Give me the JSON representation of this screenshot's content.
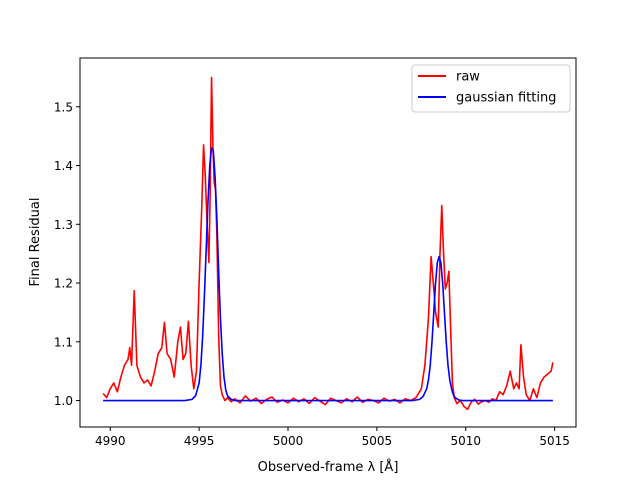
{
  "chart_data": {
    "type": "line",
    "title": "",
    "xlabel": "Observed-frame λ [Å]",
    "ylabel": "Final Residual",
    "xlim": [
      4988.3,
      5016.2
    ],
    "ylim": [
      0.955,
      1.583
    ],
    "xticks": [
      4990,
      4995,
      5000,
      5005,
      5010,
      5015
    ],
    "yticks": [
      1.0,
      1.1,
      1.2,
      1.3,
      1.4,
      1.5
    ],
    "xtick_labels": [
      "4990",
      "4995",
      "5000",
      "5005",
      "5010",
      "5015"
    ],
    "ytick_labels": [
      "1.0",
      "1.1",
      "1.2",
      "1.3",
      "1.4",
      "1.5"
    ],
    "grid": false,
    "legend_position": "upper right",
    "legend": [
      "raw",
      "gaussian fitting"
    ],
    "series": [
      {
        "name": "raw",
        "color": "#ff0000",
        "x": [
          4989.6,
          4989.8,
          4990.0,
          4990.2,
          4990.4,
          4990.6,
          4990.8,
          4991.0,
          4991.1,
          4991.2,
          4991.35,
          4991.5,
          4991.7,
          4991.9,
          4992.1,
          4992.3,
          4992.5,
          4992.7,
          4992.9,
          4993.05,
          4993.2,
          4993.4,
          4993.6,
          4993.8,
          4993.95,
          4994.1,
          4994.25,
          4994.4,
          4994.55,
          4994.7,
          4994.85,
          4995.0,
          4995.15,
          4995.25,
          4995.35,
          4995.45,
          4995.55,
          4995.62,
          4995.7,
          4995.78,
          4995.85,
          4995.92,
          4996.0,
          4996.1,
          4996.2,
          4996.3,
          4996.45,
          4996.6,
          4996.8,
          4997.0,
          4997.3,
          4997.6,
          4997.9,
          4998.2,
          4998.5,
          4998.8,
          4999.1,
          4999.4,
          4999.7,
          5000.0,
          5000.3,
          5000.6,
          5000.9,
          5001.2,
          5001.5,
          5001.8,
          5002.1,
          5002.4,
          5002.7,
          5003.0,
          5003.3,
          5003.6,
          5003.9,
          5004.2,
          5004.5,
          5004.8,
          5005.1,
          5005.4,
          5005.7,
          5006.0,
          5006.3,
          5006.6,
          5006.9,
          5007.2,
          5007.5,
          5007.7,
          5007.9,
          5008.05,
          5008.2,
          5008.3,
          5008.45,
          5008.55,
          5008.65,
          5008.75,
          5008.85,
          5008.95,
          5009.05,
          5009.15,
          5009.25,
          5009.35,
          5009.5,
          5009.7,
          5009.9,
          5010.1,
          5010.3,
          5010.5,
          5010.7,
          5010.9,
          5011.1,
          5011.3,
          5011.5,
          5011.7,
          5011.9,
          5012.1,
          5012.3,
          5012.5,
          5012.7,
          5012.85,
          5013.0,
          5013.1,
          5013.25,
          5013.4,
          5013.6,
          5013.8,
          5014.0,
          5014.2,
          5014.4,
          5014.6,
          5014.8,
          5014.9
        ],
        "y": [
          1.012,
          1.005,
          1.02,
          1.03,
          1.015,
          1.04,
          1.06,
          1.07,
          1.09,
          1.06,
          1.187,
          1.06,
          1.04,
          1.03,
          1.035,
          1.025,
          1.05,
          1.08,
          1.09,
          1.133,
          1.08,
          1.07,
          1.04,
          1.1,
          1.125,
          1.07,
          1.08,
          1.135,
          1.06,
          1.02,
          1.05,
          1.2,
          1.33,
          1.435,
          1.38,
          1.3,
          1.235,
          1.35,
          1.55,
          1.43,
          1.37,
          1.36,
          1.28,
          1.11,
          1.025,
          1.01,
          1.0,
          1.005,
          0.998,
          1.003,
          0.996,
          1.008,
          0.999,
          1.004,
          0.995,
          1.002,
          1.006,
          0.997,
          1.001,
          0.996,
          1.004,
          0.998,
          1.003,
          0.995,
          1.005,
          0.999,
          0.993,
          1.004,
          1.0,
          0.996,
          1.003,
          0.998,
          1.006,
          0.997,
          1.002,
          1.0,
          0.996,
          1.004,
          0.999,
          1.002,
          0.996,
          1.003,
          1.0,
          1.005,
          1.02,
          1.06,
          1.14,
          1.245,
          1.19,
          1.15,
          1.125,
          1.25,
          1.332,
          1.25,
          1.19,
          1.2,
          1.22,
          1.12,
          1.03,
          1.005,
          0.995,
          1.0,
          0.99,
          0.985,
          0.997,
          1.002,
          0.994,
          0.998,
          1.0,
          0.997,
          1.003,
          1.0,
          1.015,
          1.01,
          1.025,
          1.05,
          1.02,
          1.03,
          1.02,
          1.095,
          1.04,
          1.01,
          1.0,
          1.02,
          1.005,
          1.03,
          1.04,
          1.045,
          1.05,
          1.065
        ]
      },
      {
        "name": "gaussian fitting",
        "color": "#0000ff",
        "x": [
          4989.6,
          4990.5,
          4991.5,
          4992.5,
          4993.5,
          4994.2,
          4994.6,
          4994.8,
          4995.0,
          4995.1,
          4995.2,
          4995.3,
          4995.4,
          4995.5,
          4995.6,
          4995.7,
          4995.8,
          4995.9,
          4996.0,
          4996.1,
          4996.2,
          4996.3,
          4996.4,
          4996.5,
          4996.6,
          4996.8,
          4997.0,
          4998.0,
          5000.0,
          5002.0,
          5004.0,
          5006.0,
          5007.0,
          5007.4,
          5007.6,
          5007.8,
          5007.9,
          5008.0,
          5008.1,
          5008.2,
          5008.3,
          5008.4,
          5008.5,
          5008.6,
          5008.7,
          5008.8,
          5008.9,
          5009.0,
          5009.1,
          5009.2,
          5009.3,
          5009.4,
          5009.6,
          5009.8,
          5010.0,
          5011.0,
          5012.0,
          5013.0,
          5014.0,
          5014.9
        ],
        "y": [
          1.0,
          1.0,
          1.0,
          1.0,
          1.0,
          1.0,
          1.002,
          1.008,
          1.03,
          1.06,
          1.11,
          1.18,
          1.26,
          1.34,
          1.4,
          1.43,
          1.425,
          1.38,
          1.31,
          1.22,
          1.14,
          1.08,
          1.04,
          1.018,
          1.008,
          1.002,
          1.0,
          1.0,
          1.0,
          1.0,
          1.0,
          1.0,
          1.0,
          1.002,
          1.007,
          1.02,
          1.035,
          1.06,
          1.1,
          1.15,
          1.2,
          1.235,
          1.245,
          1.235,
          1.2,
          1.15,
          1.1,
          1.06,
          1.035,
          1.02,
          1.01,
          1.005,
          1.001,
          1.0,
          1.0,
          1.0,
          1.0,
          1.0,
          1.0,
          1.0
        ]
      }
    ]
  }
}
